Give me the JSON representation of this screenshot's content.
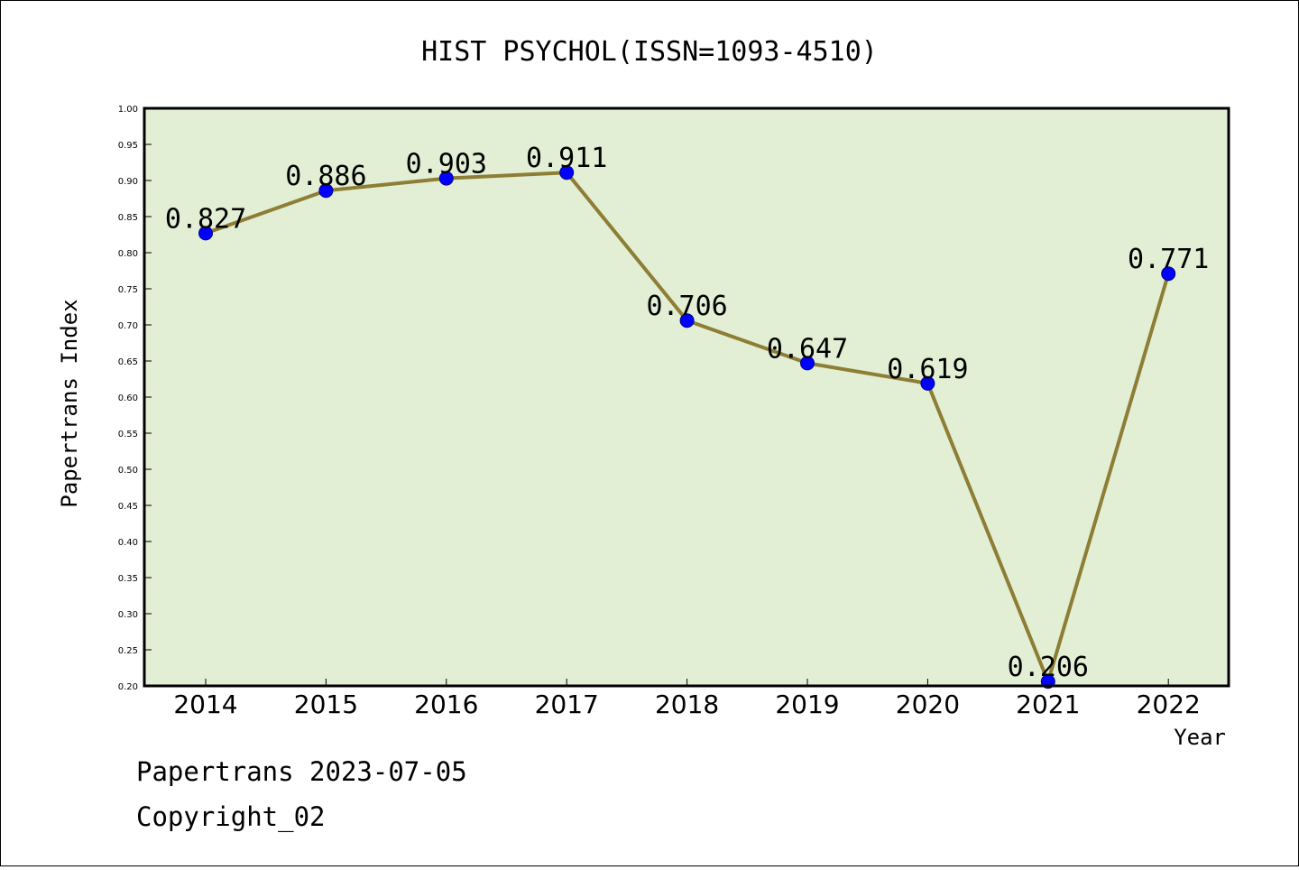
{
  "colors": {
    "plot_background": "#e2efd4",
    "line": "#8d7d35",
    "marker": "#0000ff",
    "frame": "#000000"
  },
  "footer": {
    "line1": "Papertrans 2023-07-05",
    "line2": "Copyright_02"
  },
  "chart_data": {
    "type": "line",
    "title": "HIST PSYCHOL(ISSN=1093-4510)",
    "xlabel": "Year",
    "ylabel": "Papertrans Index",
    "ylim": [
      0.2,
      1.0
    ],
    "yticks": [
      "0.20",
      "0.25",
      "0.30",
      "0.35",
      "0.40",
      "0.45",
      "0.50",
      "0.55",
      "0.60",
      "0.65",
      "0.70",
      "0.75",
      "0.80",
      "0.85",
      "0.90",
      "0.95",
      "1.00"
    ],
    "categories": [
      "2014",
      "2015",
      "2016",
      "2017",
      "2018",
      "2019",
      "2020",
      "2021",
      "2022"
    ],
    "values": [
      0.827,
      0.886,
      0.903,
      0.911,
      0.706,
      0.647,
      0.619,
      0.206,
      0.771
    ],
    "data_labels": [
      "0.827",
      "0.886",
      "0.903",
      "0.911",
      "0.706",
      "0.647",
      "0.619",
      "0.206",
      "0.771"
    ],
    "grid": false,
    "legend": "none"
  }
}
